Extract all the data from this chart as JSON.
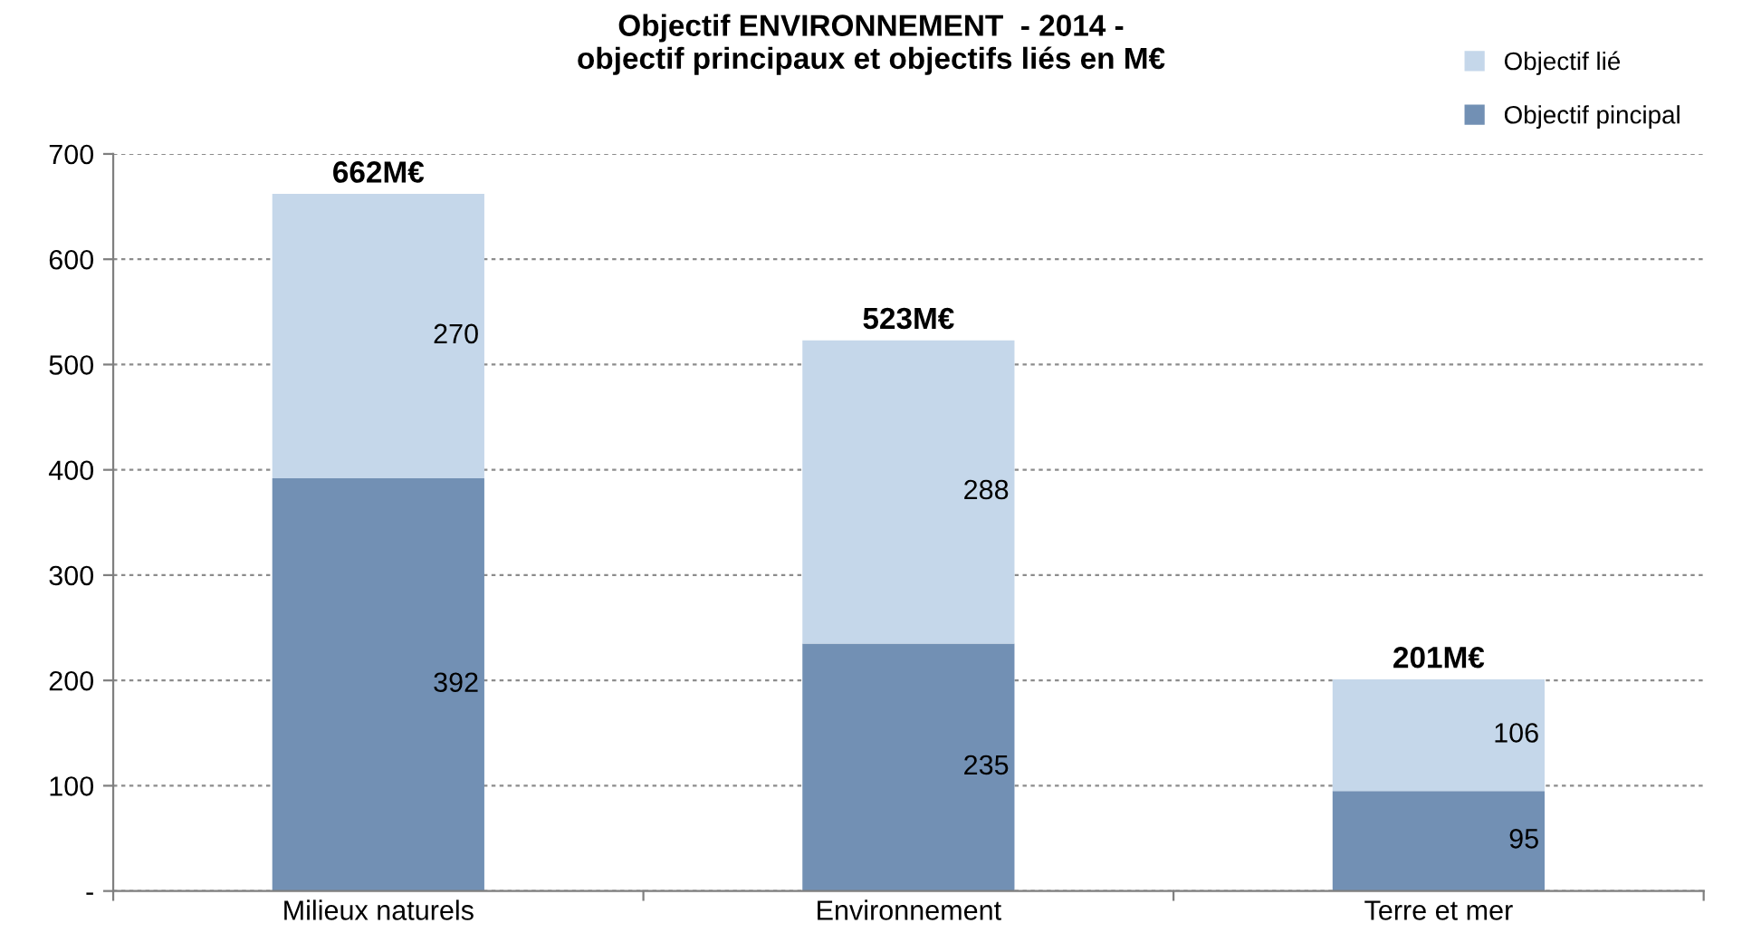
{
  "chart_data": {
    "type": "bar",
    "title": "Objectif ENVIRONNEMENT  - 2014 -\nobjectif principaux et objectifs liés en M€",
    "categories": [
      "Milieux naturels",
      "Environnement",
      "Terre et mer"
    ],
    "stacked": true,
    "series": [
      {
        "name": "Objectif pincipal",
        "color": "#7290b4",
        "values": [
          392,
          235,
          95
        ],
        "value_labels": [
          "392",
          "235",
          "95"
        ]
      },
      {
        "name": "Objectif lié",
        "color": "#c5d7ea",
        "values": [
          270,
          288,
          106
        ],
        "value_labels": [
          "270",
          "288",
          "106"
        ]
      }
    ],
    "totals": [
      "662M€",
      "523M€",
      "201M€"
    ],
    "ylim": [
      0,
      700
    ],
    "yticks": [
      {
        "value": 0,
        "label": "-"
      },
      100,
      200,
      300,
      400,
      500,
      600,
      700
    ],
    "grid": "y",
    "legend": "top right"
  }
}
